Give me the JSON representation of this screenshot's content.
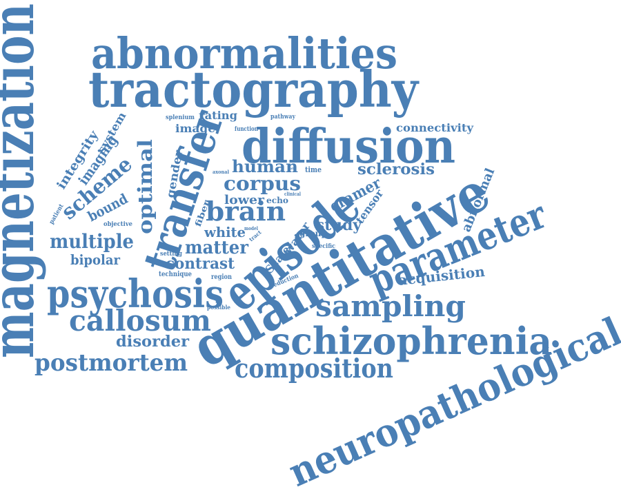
{
  "colors": {
    "word": "#4a7fb5",
    "background": "#ffffff"
  },
  "words": {
    "magnetization": "magnetization",
    "abnormalities": "abnormalities",
    "tractography": "tractography",
    "diffusion": "diffusion",
    "transfer": "transfer",
    "episode": "episode",
    "quantitative": "quantitative",
    "parameter": "parameter",
    "psychosis": "psychosis",
    "schizophrenia": "schizophrenia",
    "neuropathological": "neuropathological",
    "sampling": "sampling",
    "callosum": "callosum",
    "postmortem": "postmortem",
    "composition": "composition",
    "brain": "brain",
    "multiple": "multiple",
    "corpus": "corpus",
    "human": "human",
    "scheme": "scheme",
    "sclerosis": "sclerosis",
    "optimal": "optimal",
    "imaging": "imaging",
    "integrity": "integrity",
    "system": "system",
    "matter": "matter",
    "white": "white",
    "contrast": "contrast",
    "study": "study",
    "cramer": "cramer",
    "disorder": "disorder",
    "bipolar": "bipolar",
    "acquisition": "acquisition",
    "abnormal": "abnormal",
    "connectivity": "connectivity",
    "tensor": "tensor",
    "image": "image",
    "rating": "rating",
    "lower": "lower",
    "gender": "gender",
    "bound": "bound",
    "fiber": "fiber",
    "echo": "echo",
    "water": "water",
    "scale": "Scale",
    "group": "group",
    "technique": "technique",
    "region": "region",
    "setting": "setting",
    "time": "time",
    "patient": "patient",
    "objective": "objective",
    "splenium": "splenium",
    "pathway": "pathway",
    "function": "function",
    "axonal": "axonal",
    "reduction": "reduction",
    "specific": "specific",
    "possible": "possible",
    "clinical": "clinical",
    "model": "model",
    "tract": "tract",
    "data": "data",
    "s": "s",
    "a": "a"
  }
}
